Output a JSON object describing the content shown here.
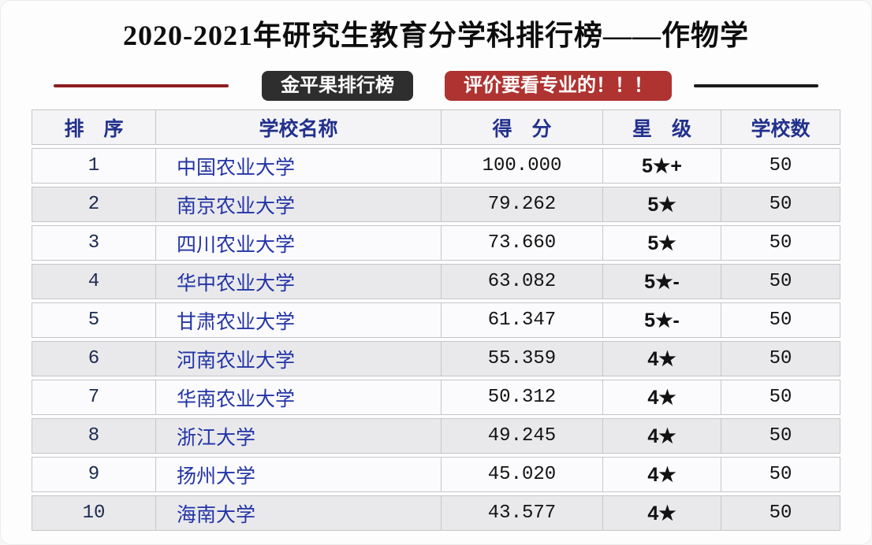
{
  "title": "2020-2021年研究生教育分学科排行榜——作物学",
  "badges": {
    "brand": "金平果排行榜",
    "slogan": "评价要看专业的！！！"
  },
  "colors": {
    "brand_badge_bg": "#2e2e2e",
    "slogan_badge_bg": "#ae3331",
    "left_line": "#8d1d20",
    "right_line": "#1b1b1b",
    "header_text": "#22318c",
    "school_text": "#2334a6",
    "row_alt_bg": "#e9e9ec"
  },
  "table": {
    "headers": [
      "排　序",
      "学校名称",
      "得　分",
      "星　级",
      "学校数"
    ],
    "rows": [
      {
        "rank": "1",
        "school": "中国农业大学",
        "score": "100.000",
        "stars": "5★+",
        "count": "50"
      },
      {
        "rank": "2",
        "school": "南京农业大学",
        "score": "79.262",
        "stars": "5★",
        "count": "50"
      },
      {
        "rank": "3",
        "school": "四川农业大学",
        "score": "73.660",
        "stars": "5★",
        "count": "50"
      },
      {
        "rank": "4",
        "school": "华中农业大学",
        "score": "63.082",
        "stars": "5★-",
        "count": "50"
      },
      {
        "rank": "5",
        "school": "甘肃农业大学",
        "score": "61.347",
        "stars": "5★-",
        "count": "50"
      },
      {
        "rank": "6",
        "school": "河南农业大学",
        "score": "55.359",
        "stars": "4★",
        "count": "50"
      },
      {
        "rank": "7",
        "school": "华南农业大学",
        "score": "50.312",
        "stars": "4★",
        "count": "50"
      },
      {
        "rank": "8",
        "school": "浙江大学",
        "score": "49.245",
        "stars": "4★",
        "count": "50"
      },
      {
        "rank": "9",
        "school": "扬州大学",
        "score": "45.020",
        "stars": "4★",
        "count": "50"
      },
      {
        "rank": "10",
        "school": "海南大学",
        "score": "43.577",
        "stars": "4★",
        "count": "50"
      }
    ]
  }
}
